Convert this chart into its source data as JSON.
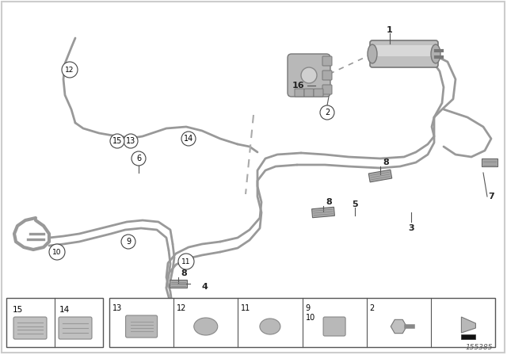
{
  "background_color": "#ffffff",
  "diagram_id": "155385",
  "line_color": "#999999",
  "line_width": 2.0,
  "circle_edge_color": "#444444",
  "circle_face_color": "#ffffff",
  "clip_color": "#aaaaaa",
  "clip_edge": "#666666"
}
